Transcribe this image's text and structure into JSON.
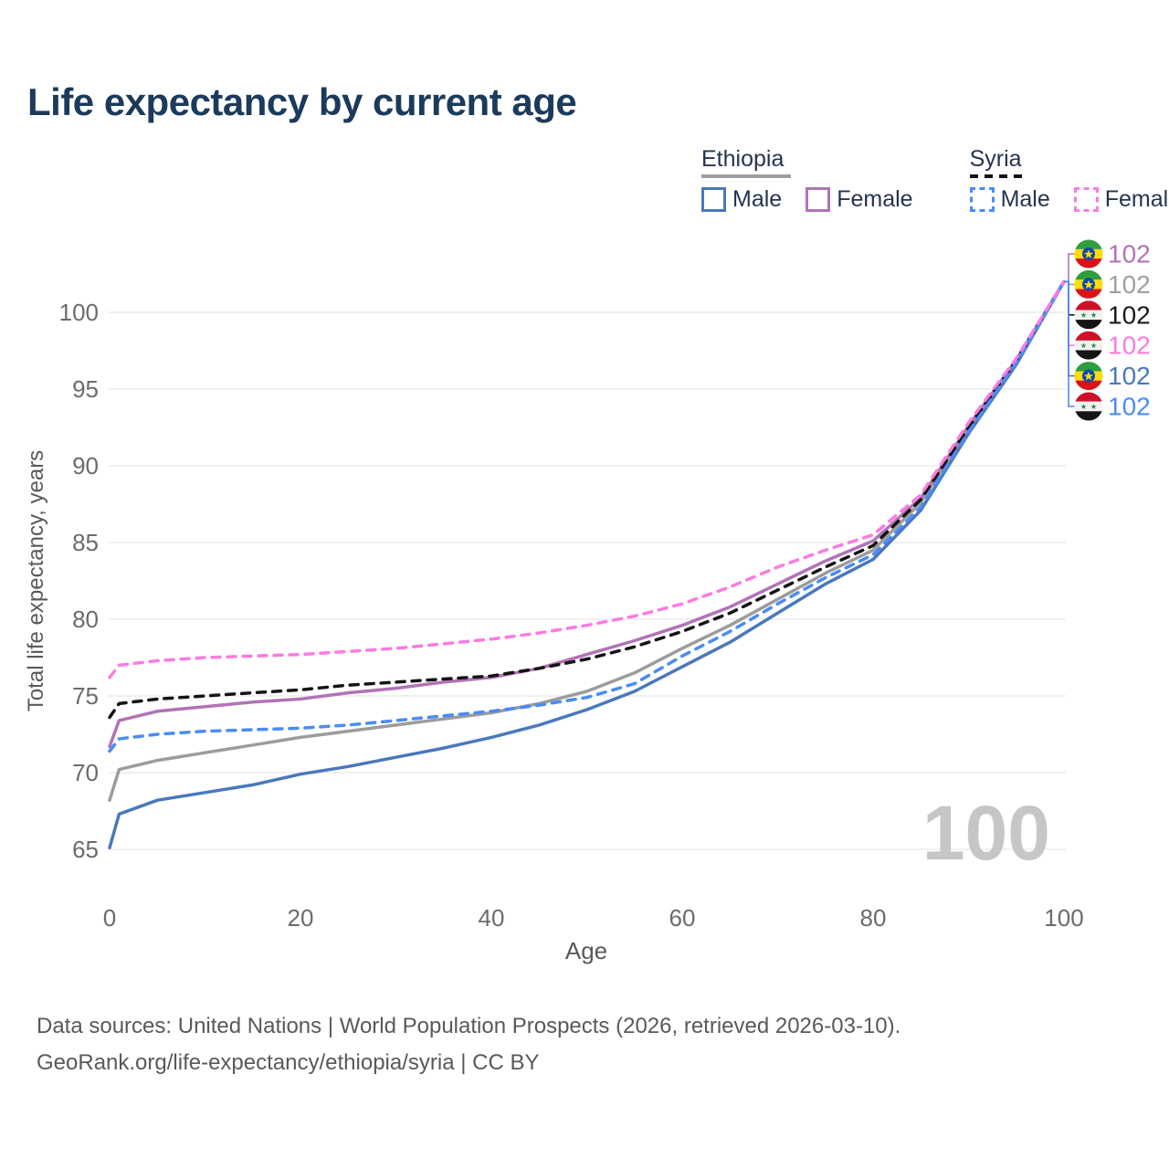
{
  "title": "Life expectancy by current age",
  "legend": {
    "groups": [
      {
        "label": "Ethiopia",
        "underline_style": "solid",
        "underline_color": "#9e9e9e",
        "underline_width": 98,
        "items": [
          {
            "label": "Male",
            "color": "#4a78bd",
            "dash": false
          },
          {
            "label": "Female",
            "color": "#b173b6",
            "dash": false
          }
        ]
      },
      {
        "label": "Syria",
        "underline_style": "dashed",
        "underline_color": "#141414",
        "underline_width": 58,
        "items": [
          {
            "label": "Male",
            "color": "#4b8bf5",
            "dash": true
          },
          {
            "label": "Female",
            "color": "#fb7be2",
            "dash": true
          }
        ]
      }
    ]
  },
  "watermark": "100",
  "footer": {
    "line1": "Data sources: United Nations | World Population Prospects (2026, retrieved 2026-03-10).",
    "line2": "GeoRank.org/life-expectancy/ethiopia/syria | CC BY"
  },
  "chart_data": {
    "type": "line",
    "title": "Life expectancy by current age",
    "xlabel": "Age",
    "ylabel": "Total life expectancy, years",
    "xlim": [
      0,
      100
    ],
    "ylim": [
      65,
      100
    ],
    "x_ticks": [
      0,
      20,
      40,
      60,
      80,
      100
    ],
    "y_ticks": [
      65,
      70,
      75,
      80,
      85,
      90,
      95,
      100
    ],
    "grid": "horizontal",
    "grid_color": "#ececec",
    "current_age_watermark": "100",
    "ages": [
      0,
      1,
      5,
      10,
      15,
      20,
      25,
      30,
      35,
      40,
      45,
      50,
      55,
      60,
      65,
      70,
      75,
      80,
      85,
      90,
      95,
      100
    ],
    "series": [
      {
        "name": "Ethiopia",
        "country": "ethiopia",
        "sex": "both",
        "color": "#9c9c9c",
        "dash": false,
        "values": [
          68.2,
          70.2,
          70.8,
          71.3,
          71.8,
          72.3,
          72.7,
          73.1,
          73.5,
          73.9,
          74.5,
          75.3,
          76.5,
          78.1,
          79.6,
          81.3,
          83.0,
          84.5,
          87.6,
          92.4,
          96.8,
          102
        ]
      },
      {
        "name": "Ethiopia Female",
        "country": "ethiopia",
        "sex": "female",
        "color": "#b173b6",
        "dash": false,
        "values": [
          71.7,
          73.4,
          74.0,
          74.3,
          74.6,
          74.8,
          75.2,
          75.5,
          75.9,
          76.2,
          76.8,
          77.7,
          78.6,
          79.6,
          80.8,
          82.3,
          83.8,
          85.1,
          87.9,
          92.6,
          96.9,
          102
        ]
      },
      {
        "name": "Ethiopia Male",
        "country": "ethiopia",
        "sex": "male",
        "color": "#4a78bd",
        "dash": false,
        "values": [
          65.1,
          67.3,
          68.2,
          68.7,
          69.2,
          69.9,
          70.4,
          71.0,
          71.6,
          72.3,
          73.1,
          74.1,
          75.3,
          76.9,
          78.5,
          80.4,
          82.3,
          83.9,
          87.1,
          92.1,
          96.6,
          102
        ]
      },
      {
        "name": "Syria",
        "country": "syria",
        "sex": "both",
        "color": "#141414",
        "dash": true,
        "values": [
          73.6,
          74.5,
          74.8,
          75.0,
          75.2,
          75.4,
          75.7,
          75.9,
          76.1,
          76.3,
          76.8,
          77.4,
          78.2,
          79.2,
          80.4,
          81.9,
          83.4,
          84.8,
          87.8,
          92.5,
          96.9,
          102
        ]
      },
      {
        "name": "Syria Male",
        "country": "syria",
        "sex": "male",
        "color": "#4b8bf5",
        "dash": true,
        "values": [
          71.4,
          72.2,
          72.5,
          72.7,
          72.8,
          72.9,
          73.1,
          73.4,
          73.7,
          74.0,
          74.4,
          74.9,
          75.8,
          77.6,
          79.2,
          81.0,
          82.7,
          84.2,
          87.3,
          92.2,
          96.7,
          102
        ]
      },
      {
        "name": "Syria Female",
        "country": "syria",
        "sex": "female",
        "color": "#fb7be2",
        "dash": true,
        "values": [
          76.2,
          77.0,
          77.3,
          77.5,
          77.6,
          77.7,
          77.9,
          78.1,
          78.4,
          78.7,
          79.1,
          79.6,
          80.2,
          81.0,
          82.1,
          83.4,
          84.5,
          85.5,
          88.1,
          92.8,
          97.0,
          102
        ]
      }
    ],
    "end_labels": [
      {
        "series": "Ethiopia Female",
        "country": "ethiopia",
        "value": "102",
        "color": "#b173b6"
      },
      {
        "series": "Ethiopia",
        "country": "ethiopia",
        "value": "102",
        "color": "#a0a0a0"
      },
      {
        "series": "Syria",
        "country": "syria",
        "value": "102",
        "color": "#1a1a1a"
      },
      {
        "series": "Syria Female",
        "country": "syria",
        "value": "102",
        "color": "#fb7be2"
      },
      {
        "series": "Ethiopia Male",
        "country": "ethiopia",
        "value": "102",
        "color": "#4a78bd"
      },
      {
        "series": "Syria Male",
        "country": "syria",
        "value": "102",
        "color": "#4b8bf5"
      }
    ],
    "legend_position": "top-right"
  }
}
